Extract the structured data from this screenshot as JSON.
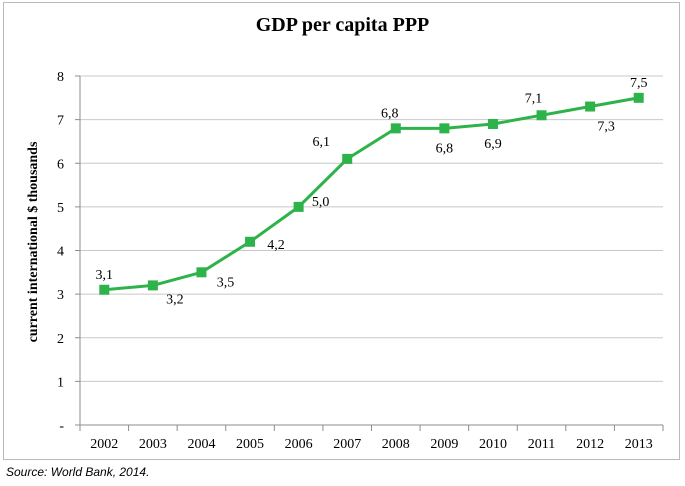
{
  "chart_data": {
    "type": "line",
    "title": "GDP per capita PPP",
    "xlabel": "",
    "ylabel": "current international $ thousands",
    "categories": [
      "2002",
      "2003",
      "2004",
      "2005",
      "2006",
      "2007",
      "2008",
      "2009",
      "2010",
      "2011",
      "2012",
      "2013"
    ],
    "series": [
      {
        "values": [
          3.1,
          3.2,
          3.5,
          4.2,
          5.0,
          6.1,
          6.8,
          6.8,
          6.9,
          7.1,
          7.3,
          7.5
        ],
        "data_labels": [
          "3,1",
          "3,2",
          "3,5",
          "4,2",
          "5,0",
          "6,1",
          "6,8",
          "6,8",
          "6,9",
          "7,1",
          "7,3",
          "7,5"
        ],
        "color": "#2db34a"
      }
    ],
    "ylim": [
      0,
      8
    ],
    "yticks": [
      "-",
      "1",
      "2",
      "3",
      "4",
      "5",
      "6",
      "7",
      "8"
    ],
    "grid": true,
    "legend": "none"
  },
  "source": "Source: World Bank, 2014."
}
